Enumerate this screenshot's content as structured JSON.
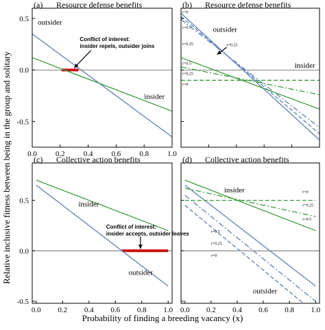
{
  "figure": {
    "ylabel": "Relative inclusive fitness between being in the group and solitary",
    "xlabel": "Probability of finding a breeding vacancy (x)"
  },
  "colors": {
    "blue": "#5b7fb8",
    "green": "#3c9a3c",
    "red": "#cc1111",
    "zero_line": "#555555"
  },
  "chart_data": [
    {
      "type": "line",
      "panel": "(a)",
      "title": "Resource defense benefits",
      "xlim": [
        0,
        1
      ],
      "ylim": [
        -0.75,
        0.6
      ],
      "xticks": [
        "0.0",
        "0.2",
        "0.4",
        "0.6",
        "0.8",
        "1.0"
      ],
      "yticks": [
        -0.5,
        0.0,
        0.5
      ],
      "yticklabels": [
        "-0.5",
        "0.0",
        "0.5"
      ],
      "series": [
        {
          "name": "outsider",
          "color": "blue",
          "dash": "solid",
          "x": [
            0,
            1
          ],
          "y": [
            0.35,
            -0.65
          ]
        },
        {
          "name": "insider",
          "color": "green",
          "dash": "solid",
          "x": [
            0,
            1
          ],
          "y": [
            0.12,
            -0.4
          ]
        }
      ],
      "highlight": {
        "x": [
          0.21,
          0.33
        ],
        "y": 0.0
      },
      "labels": [
        {
          "text": "outsider",
          "x": 0.04,
          "y": 0.44,
          "size": 11
        },
        {
          "text": "insider",
          "x": 0.8,
          "y": -0.28,
          "size": 11
        }
      ],
      "annotation": {
        "lines": [
          "Conflict of interest:",
          "insider repels, outsider joins"
        ],
        "x": 0.34,
        "y": 0.28,
        "arrow_from": [
          0.42,
          0.19
        ],
        "arrow_to": [
          0.3,
          0.02
        ]
      }
    },
    {
      "type": "line",
      "panel": "(b)",
      "title": "Resource defense benefits",
      "xlim": [
        0,
        1
      ],
      "ylim": [
        -0.75,
        0.6
      ],
      "xticks": [],
      "yticks": [
        -0.5,
        0.0,
        0.5
      ],
      "yticklabels": [],
      "series": [
        {
          "name": "outsider r=0",
          "color": "blue",
          "dash": "solid",
          "x": [
            0,
            1
          ],
          "y": [
            0.55,
            -0.68
          ]
        },
        {
          "name": "outsider r=0.25",
          "color": "blue",
          "dash": "dashed",
          "x": [
            0,
            1
          ],
          "y": [
            0.52,
            -0.62
          ]
        },
        {
          "name": "outsider r=0.5",
          "color": "blue",
          "dash": "dashdot",
          "x": [
            0,
            1
          ],
          "y": [
            0.49,
            -0.56
          ]
        },
        {
          "name": "insider r=0",
          "color": "green",
          "dash": "dashed",
          "x": [
            0,
            1
          ],
          "y": [
            -0.1,
            -0.1
          ]
        },
        {
          "name": "insider r=0.25",
          "color": "green",
          "dash": "dashdot",
          "x": [
            0,
            1
          ],
          "y": [
            0.03,
            -0.24
          ]
        },
        {
          "name": "insider r=0.5",
          "color": "green",
          "dash": "solid",
          "x": [
            0,
            1
          ],
          "y": [
            0.12,
            -0.38
          ]
        }
      ],
      "labels": [
        {
          "text": "outsider",
          "x": 0.23,
          "y": 0.37,
          "size": 11
        },
        {
          "text": "insider",
          "x": 0.82,
          "y": 0.02,
          "size": 11
        },
        {
          "text": "r=0",
          "x": 0.01,
          "y": 0.55,
          "size": 6
        },
        {
          "text": "r=0.5",
          "x": 0.01,
          "y": 0.4,
          "size": 6
        },
        {
          "text": "r=0.25",
          "x": 0.01,
          "y": 0.24,
          "size": 6
        },
        {
          "text": "r=0.5",
          "x": 0.01,
          "y": 0.05,
          "size": 6
        },
        {
          "text": "r=0.25",
          "x": 0.01,
          "y": -0.05,
          "size": 6
        },
        {
          "text": "r=0",
          "x": 0.01,
          "y": -0.15,
          "size": 6
        },
        {
          "text": "r=0.25",
          "x": 0.33,
          "y": 0.23,
          "size": 6
        }
      ],
      "arrow": {
        "from": [
          0.33,
          0.22
        ],
        "to": [
          0.26,
          0.15
        ]
      }
    },
    {
      "type": "line",
      "panel": "(c)",
      "title": "Collective action benefits",
      "xlim": [
        -0.03,
        1.03
      ],
      "ylim": [
        -0.52,
        0.87
      ],
      "xticks": [
        "0.0",
        "0.2",
        "0.4",
        "0.6",
        "0.8",
        "1.0"
      ],
      "yticks": [
        -0.5,
        0.0,
        0.5
      ],
      "yticklabels": [
        "-0.5",
        "0.0",
        "0.5"
      ],
      "series": [
        {
          "name": "outsider",
          "color": "blue",
          "dash": "solid",
          "x": [
            0,
            1
          ],
          "y": [
            0.65,
            -0.35
          ]
        },
        {
          "name": "insider",
          "color": "green",
          "dash": "solid",
          "x": [
            0,
            1
          ],
          "y": [
            0.7,
            0.2
          ]
        }
      ],
      "highlight": {
        "x": [
          0.65,
          1.0
        ],
        "y": 0.0
      },
      "labels": [
        {
          "text": "insider",
          "x": 0.32,
          "y": 0.44,
          "size": 11
        },
        {
          "text": "outsider",
          "x": 0.7,
          "y": -0.24,
          "size": 11
        }
      ],
      "annotation": {
        "lines": [
          "Conflict of interest:",
          "insider accepts, outsider leaves"
        ],
        "x": 0.53,
        "y": 0.22,
        "arrow_from": [
          0.79,
          0.14
        ],
        "arrow_to": [
          0.79,
          0.02
        ]
      }
    },
    {
      "type": "line",
      "panel": "(d)",
      "title": "Collective action benefits",
      "xlim": [
        -0.03,
        1.03
      ],
      "ylim": [
        -0.52,
        0.87
      ],
      "xticks": [
        "0.0",
        "0.2",
        "0.4",
        "0.6",
        "0.8",
        "1.0"
      ],
      "yticks": [
        -0.5,
        0.0,
        0.5
      ],
      "yticklabels": [],
      "series": [
        {
          "name": "outsider r=0",
          "color": "blue",
          "dash": "solid",
          "x": [
            0,
            1
          ],
          "y": [
            0.65,
            -0.35
          ]
        },
        {
          "name": "outsider r=0.25",
          "color": "blue",
          "dash": "dashed",
          "x": [
            0,
            1
          ],
          "y": [
            0.45,
            -0.62
          ]
        },
        {
          "name": "outsider r=0.5",
          "color": "blue",
          "dash": "dashdot",
          "x": [
            0,
            1
          ],
          "y": [
            0.55,
            -0.5
          ]
        },
        {
          "name": "insider r=0",
          "color": "green",
          "dash": "dashed",
          "x": [
            0,
            1
          ],
          "y": [
            0.5,
            0.5
          ]
        },
        {
          "name": "insider r=0.25",
          "color": "green",
          "dash": "dashdot",
          "x": [
            0,
            1
          ],
          "y": [
            0.62,
            0.34
          ]
        },
        {
          "name": "insider r=0.5",
          "color": "green",
          "dash": "solid",
          "x": [
            0,
            1
          ],
          "y": [
            0.7,
            0.2
          ]
        }
      ],
      "labels": [
        {
          "text": "insider",
          "x": 0.3,
          "y": 0.58,
          "size": 11
        },
        {
          "text": "outsider",
          "x": 0.52,
          "y": -0.42,
          "size": 11
        },
        {
          "text": "r=0",
          "x": 0.9,
          "y": 0.57,
          "size": 6
        },
        {
          "text": "r=0.25",
          "x": 0.9,
          "y": 0.44,
          "size": 6
        },
        {
          "text": "r=0.5",
          "x": 0.9,
          "y": 0.3,
          "size": 6
        },
        {
          "text": "r=0.5",
          "x": 0.2,
          "y": 0.18,
          "size": 6
        },
        {
          "text": "r=0.25",
          "x": 0.2,
          "y": 0.06,
          "size": 6
        },
        {
          "text": "r=0",
          "x": 0.2,
          "y": -0.06,
          "size": 6
        }
      ]
    }
  ]
}
